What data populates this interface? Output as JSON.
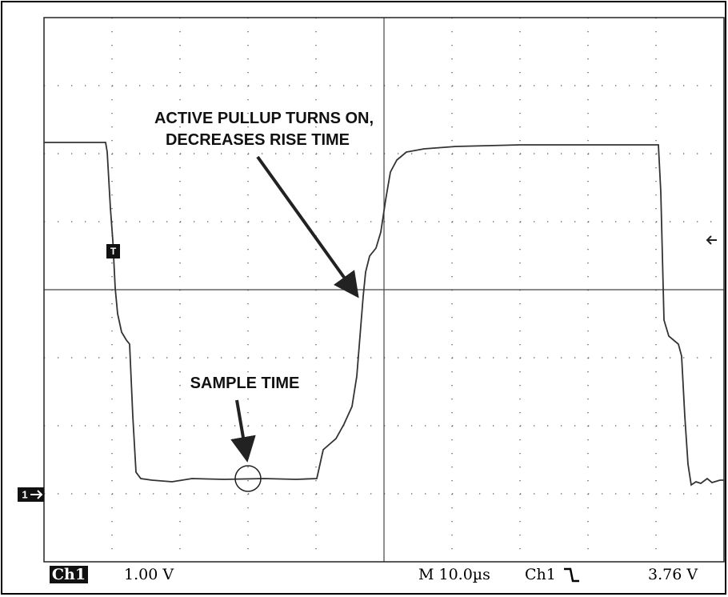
{
  "annotations": {
    "pullup": [
      "ACTIVE PULLUP TURNS ON,",
      "DECREASES RISE TIME"
    ],
    "sample": "SAMPLE TIME"
  },
  "markers": {
    "trigger": "T",
    "channel": "1"
  },
  "status": {
    "channel": "Ch1",
    "scale": "1.00 V",
    "timebase": "M 10.0µs",
    "trigger_source": "Ch1",
    "trigger_level": "3.76 V"
  }
}
